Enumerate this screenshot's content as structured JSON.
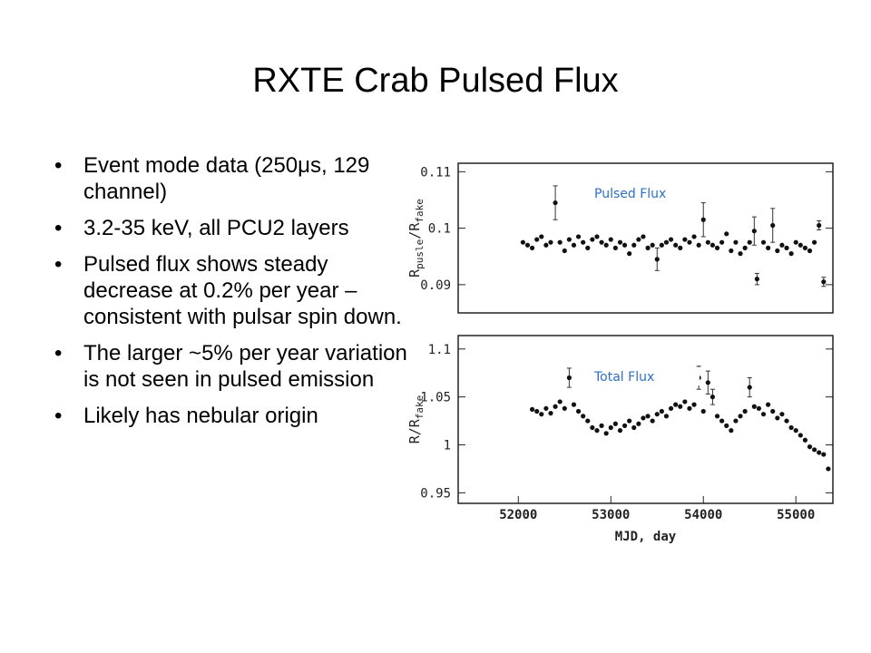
{
  "slide": {
    "title": "RXTE Crab Pulsed Flux",
    "bullets": [
      "Event mode data (250μs, 129 channel)",
      "3.2-35 keV, all PCU2 layers",
      "Pulsed flux shows steady decrease at 0.2% per year – consistent with pulsar spin down.",
      "The larger ~5% per year variation is not seen in pulsed emission",
      "Likely has nebular origin"
    ]
  },
  "chart_data": [
    {
      "type": "scatter",
      "annotation": "Pulsed Flux",
      "ylabel": [
        "R",
        "pusle",
        "/R",
        "fake"
      ],
      "xlim": [
        51350,
        55400
      ],
      "ylim": [
        0.085,
        0.1115
      ],
      "yticks": [
        0.09,
        0.1,
        0.11
      ],
      "x": [
        52050,
        52100,
        52150,
        52200,
        52250,
        52300,
        52350,
        52400,
        52450,
        52500,
        52550,
        52600,
        52650,
        52700,
        52750,
        52800,
        52850,
        52900,
        52950,
        53000,
        53050,
        53100,
        53150,
        53200,
        53250,
        53300,
        53350,
        53400,
        53450,
        53500,
        53550,
        53600,
        53650,
        53700,
        53750,
        53800,
        53850,
        53900,
        53950,
        54000,
        54050,
        54100,
        54150,
        54200,
        54250,
        54300,
        54350,
        54400,
        54450,
        54500,
        54550,
        54580,
        54650,
        54700,
        54750,
        54800,
        54850,
        54900,
        54950,
        55000,
        55050,
        55100,
        55150,
        55200,
        55250,
        55300
      ],
      "values": [
        0.0975,
        0.097,
        0.0965,
        0.098,
        0.0985,
        0.097,
        0.0975,
        0.1045,
        0.0975,
        0.096,
        0.098,
        0.097,
        0.0985,
        0.0975,
        0.0965,
        0.098,
        0.0985,
        0.0975,
        0.097,
        0.098,
        0.0965,
        0.0975,
        0.097,
        0.0955,
        0.097,
        0.098,
        0.0985,
        0.0965,
        0.097,
        0.0945,
        0.097,
        0.0975,
        0.098,
        0.097,
        0.0965,
        0.098,
        0.0975,
        0.0985,
        0.097,
        0.1015,
        0.0975,
        0.097,
        0.0965,
        0.0975,
        0.099,
        0.096,
        0.0975,
        0.0955,
        0.0965,
        0.0975,
        0.0995,
        0.091,
        0.0975,
        0.0965,
        0.1005,
        0.096,
        0.097,
        0.0965,
        0.0955,
        0.0975,
        0.097,
        0.0965,
        0.096,
        0.0975,
        0.1005,
        0.0905
      ],
      "errors": [
        null,
        null,
        null,
        null,
        null,
        null,
        null,
        0.003,
        null,
        null,
        null,
        null,
        null,
        null,
        null,
        null,
        null,
        null,
        null,
        null,
        null,
        null,
        null,
        null,
        null,
        null,
        null,
        null,
        null,
        0.002,
        null,
        null,
        null,
        null,
        null,
        null,
        null,
        null,
        null,
        0.003,
        null,
        null,
        null,
        null,
        null,
        null,
        null,
        null,
        null,
        null,
        0.0025,
        0.001,
        null,
        null,
        0.003,
        null,
        null,
        null,
        null,
        null,
        null,
        null,
        null,
        null,
        0.0008,
        0.0008
      ],
      "color": "#111111"
    },
    {
      "type": "scatter",
      "annotation": "Total Flux",
      "ylabel": [
        "R/R",
        "fake"
      ],
      "xlabel": "MJD, day",
      "xlim": [
        51350,
        55400
      ],
      "ylim": [
        0.939,
        1.114
      ],
      "yticks": [
        0.95,
        1,
        1.05,
        1.1
      ],
      "xticks": [
        52000,
        53000,
        54000,
        55000
      ],
      "x": [
        52150,
        52200,
        52250,
        52300,
        52350,
        52400,
        52450,
        52500,
        52550,
        52600,
        52650,
        52700,
        52750,
        52800,
        52850,
        52900,
        52950,
        53000,
        53050,
        53100,
        53150,
        53200,
        53250,
        53300,
        53350,
        53400,
        53450,
        53500,
        53550,
        53600,
        53650,
        53700,
        53750,
        53800,
        53850,
        53900,
        53950,
        54000,
        54050,
        54100,
        54150,
        54200,
        54250,
        54300,
        54350,
        54400,
        54450,
        54500,
        54550,
        54600,
        54650,
        54700,
        54750,
        54800,
        54850,
        54900,
        54950,
        55000,
        55050,
        55100,
        55150,
        55200,
        55250,
        55300,
        55350
      ],
      "values": [
        1.037,
        1.035,
        1.032,
        1.038,
        1.033,
        1.04,
        1.045,
        1.038,
        1.07,
        1.042,
        1.035,
        1.03,
        1.025,
        1.018,
        1.015,
        1.02,
        1.012,
        1.018,
        1.022,
        1.015,
        1.02,
        1.025,
        1.018,
        1.022,
        1.028,
        1.03,
        1.025,
        1.032,
        1.035,
        1.03,
        1.038,
        1.042,
        1.04,
        1.045,
        1.038,
        1.042,
        1.07,
        1.035,
        1.065,
        1.05,
        1.03,
        1.025,
        1.02,
        1.015,
        1.025,
        1.03,
        1.035,
        1.06,
        1.04,
        1.038,
        1.032,
        1.042,
        1.035,
        1.028,
        1.032,
        1.025,
        1.018,
        1.015,
        1.01,
        1.005,
        0.998,
        0.995,
        0.992,
        0.99,
        0.975
      ],
      "errors": [
        null,
        null,
        null,
        null,
        null,
        null,
        null,
        null,
        0.01,
        null,
        null,
        null,
        null,
        null,
        null,
        null,
        null,
        null,
        null,
        null,
        null,
        null,
        null,
        null,
        null,
        null,
        null,
        null,
        null,
        null,
        null,
        null,
        null,
        null,
        null,
        null,
        0.012,
        null,
        0.012,
        0.008,
        null,
        null,
        null,
        null,
        null,
        null,
        null,
        0.01,
        null,
        null,
        null,
        null,
        null,
        null,
        null,
        null,
        null,
        null,
        null,
        null,
        null,
        null,
        null,
        null,
        null
      ],
      "color": "#111111"
    }
  ]
}
